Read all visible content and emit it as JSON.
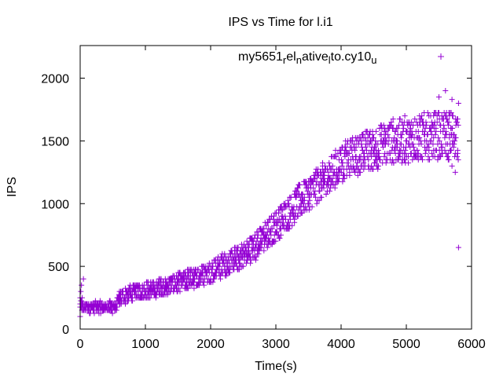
{
  "chart_data": {
    "type": "scatter",
    "title": "IPS vs Time for l.i1",
    "xlabel": "Time(s)",
    "ylabel": "IPS",
    "xlim": [
      0,
      6000
    ],
    "ylim": [
      0,
      2260
    ],
    "xticks": [
      0,
      1000,
      2000,
      3000,
      4000,
      5000,
      6000
    ],
    "yticks": [
      0,
      500,
      1000,
      1500,
      2000
    ],
    "grid": false,
    "legend_position": "top-right",
    "marker": "+",
    "series": [
      {
        "name": "my5651_rel_native_lto.cy10_u",
        "legend_parts": [
          {
            "t": "my5651",
            "sub": false
          },
          {
            "t": "r",
            "sub": true
          },
          {
            "t": "el",
            "sub": false
          },
          {
            "t": "n",
            "sub": true
          },
          {
            "t": "ative",
            "sub": false
          },
          {
            "t": "l",
            "sub": true
          },
          {
            "t": "to.cy10",
            "sub": false
          },
          {
            "t": "u",
            "sub": true
          }
        ],
        "color": "#9400d3",
        "trend": [
          [
            0,
            200
          ],
          [
            60,
            170
          ],
          [
            100,
            175
          ],
          [
            300,
            175
          ],
          [
            550,
            175
          ],
          [
            600,
            250
          ],
          [
            800,
            290
          ],
          [
            1000,
            310
          ],
          [
            1200,
            330
          ],
          [
            1400,
            350
          ],
          [
            1600,
            390
          ],
          [
            1800,
            420
          ],
          [
            2000,
            450
          ],
          [
            2200,
            510
          ],
          [
            2400,
            560
          ],
          [
            2600,
            630
          ],
          [
            2800,
            720
          ],
          [
            3000,
            820
          ],
          [
            3200,
            930
          ],
          [
            3400,
            1040
          ],
          [
            3600,
            1130
          ],
          [
            3800,
            1220
          ],
          [
            4000,
            1320
          ],
          [
            4200,
            1380
          ],
          [
            4400,
            1420
          ],
          [
            4600,
            1460
          ],
          [
            4800,
            1500
          ],
          [
            5000,
            1510
          ],
          [
            5200,
            1530
          ],
          [
            5400,
            1540
          ],
          [
            5600,
            1540
          ],
          [
            5800,
            1550
          ]
        ],
        "spread": [
          [
            0,
            40
          ],
          [
            550,
            40
          ],
          [
            600,
            60
          ],
          [
            1800,
            80
          ],
          [
            3000,
            120
          ],
          [
            4000,
            150
          ],
          [
            4800,
            180
          ],
          [
            5800,
            200
          ]
        ],
        "sample_points": [
          [
            0,
            100
          ],
          [
            10,
            300
          ],
          [
            20,
            350
          ],
          [
            30,
            250
          ],
          [
            50,
            400
          ],
          [
            5500,
            1850
          ],
          [
            5600,
            1900
          ],
          [
            5700,
            1830
          ],
          [
            5800,
            1800
          ],
          [
            5800,
            650
          ],
          [
            5750,
            1250
          ],
          [
            5700,
            1300
          ]
        ]
      }
    ]
  }
}
